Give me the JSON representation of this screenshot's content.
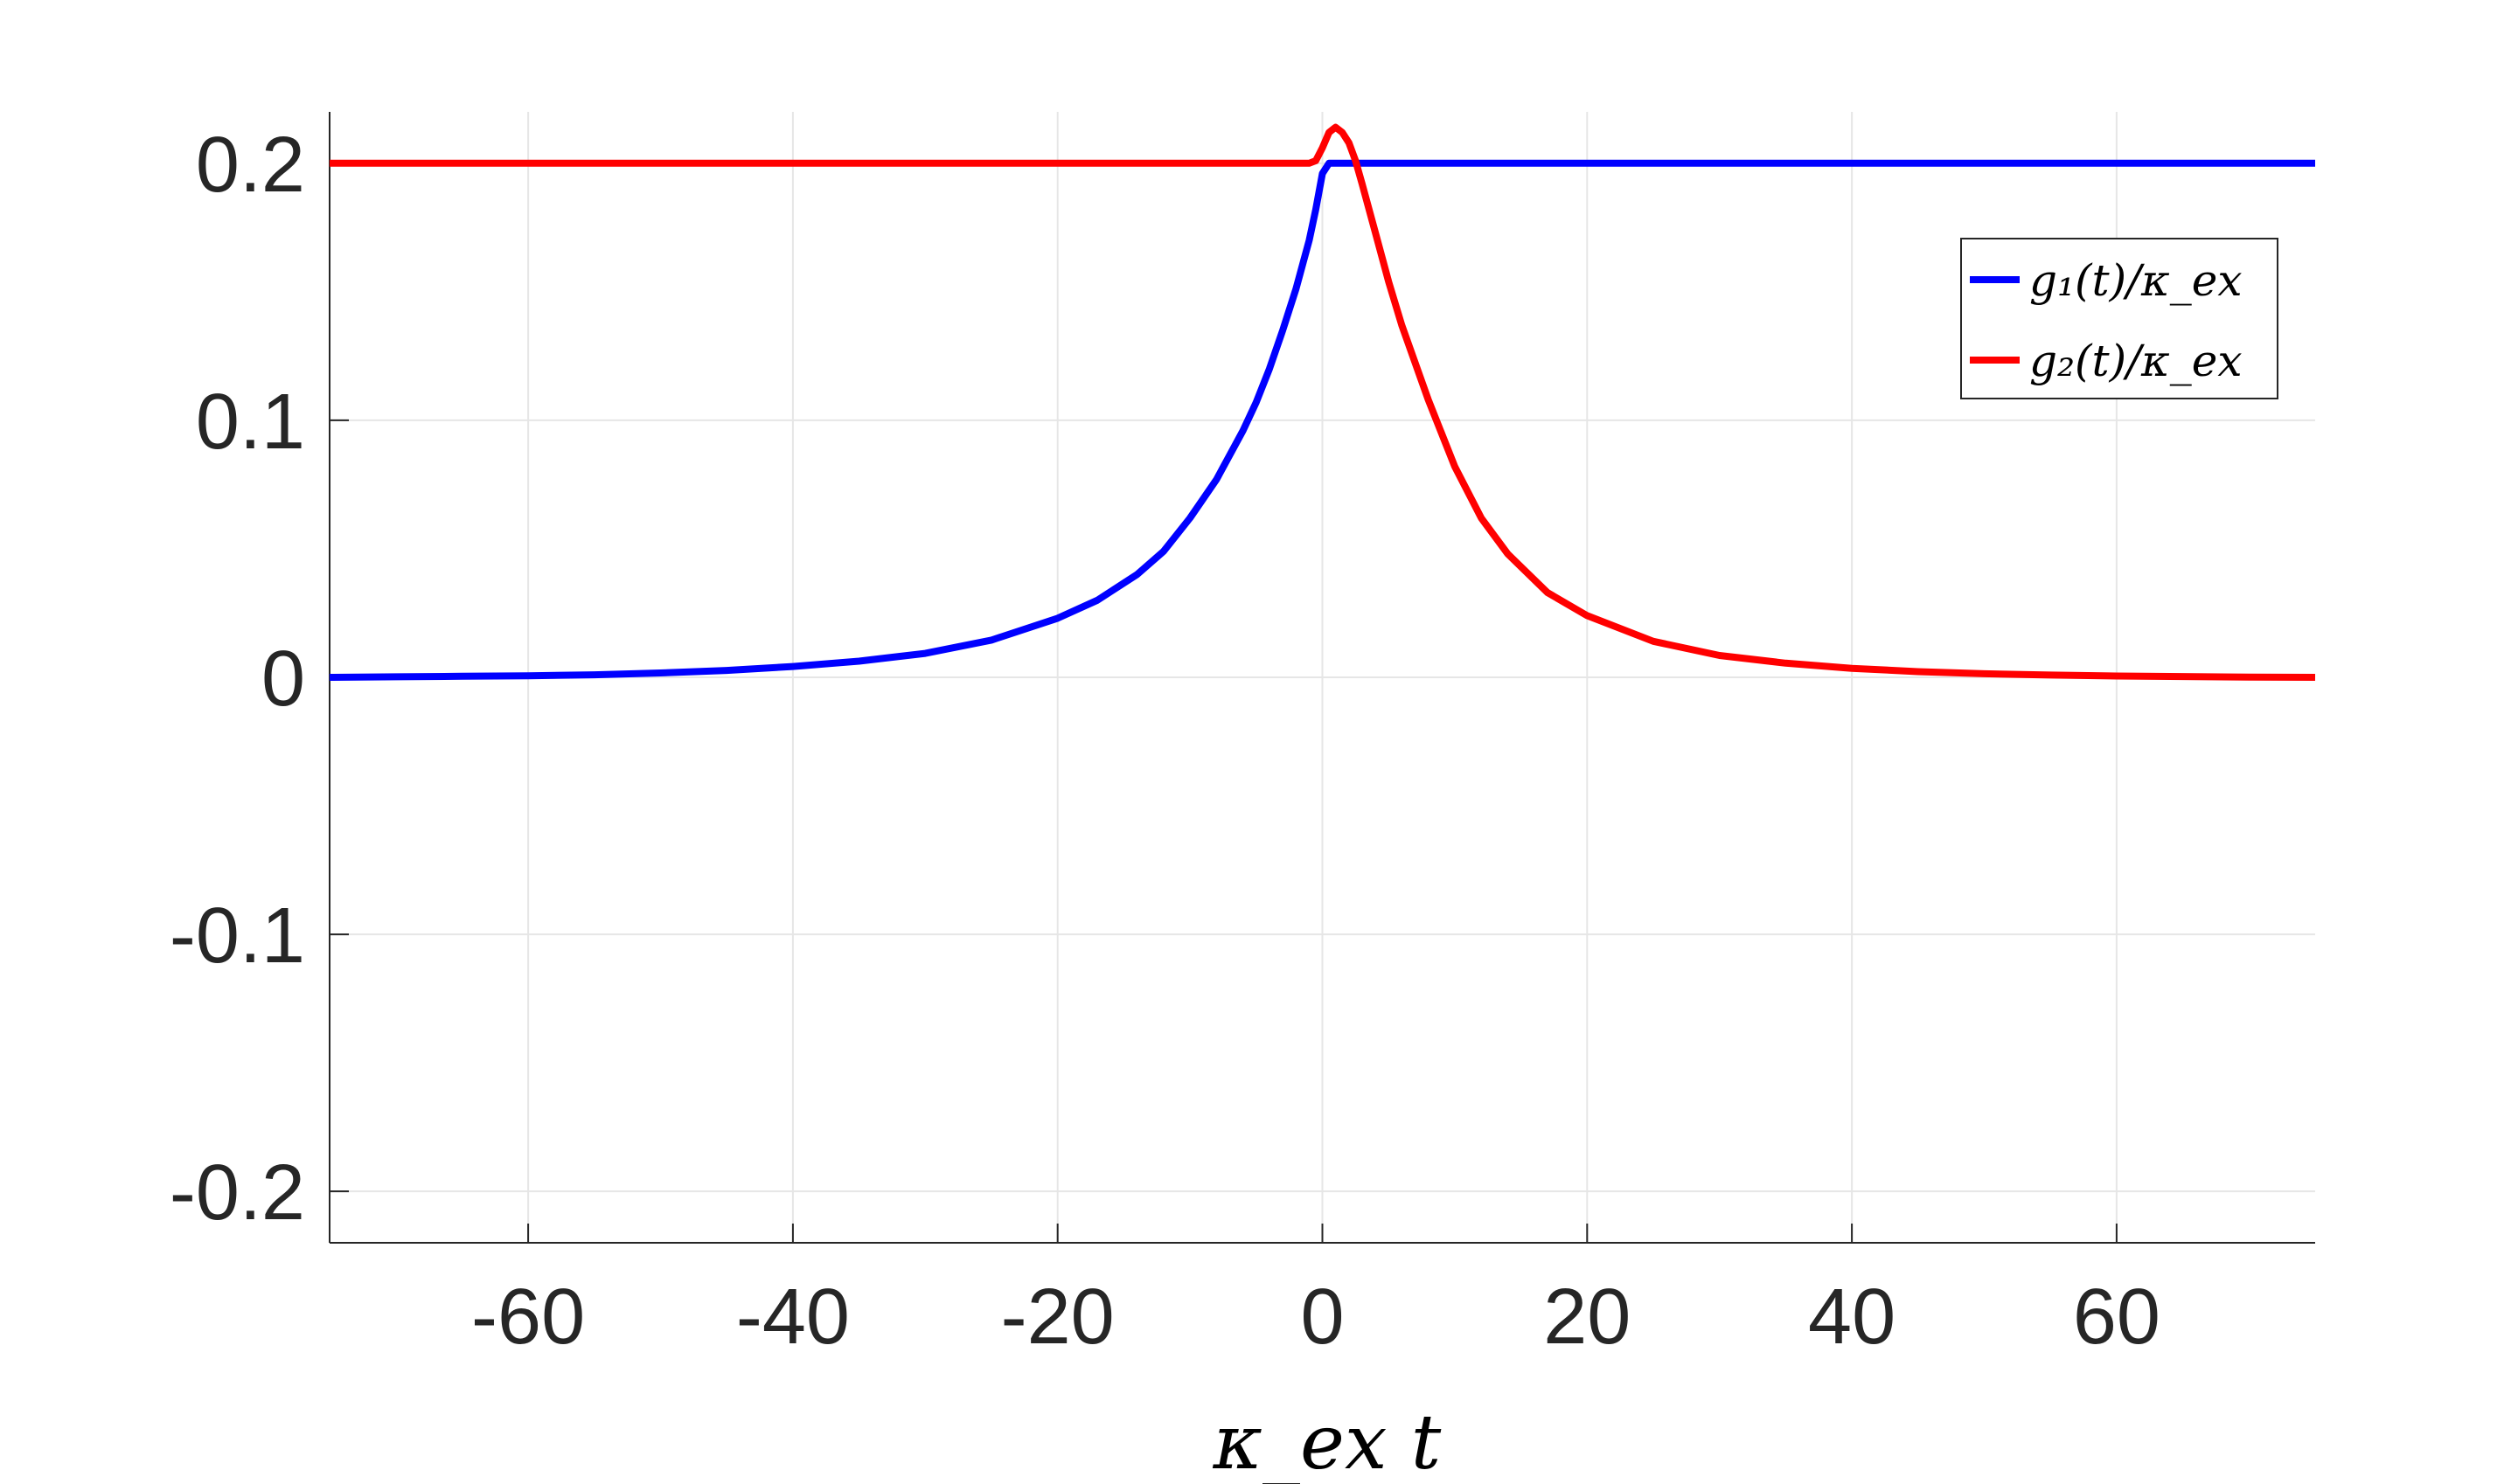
{
  "chart_data": {
    "type": "line",
    "title": "",
    "xlabel": "κ_ex t",
    "ylabel": "",
    "xlim": [
      -75,
      75
    ],
    "ylim": [
      -0.22,
      0.22
    ],
    "xticks": [
      -60,
      -40,
      -20,
      0,
      20,
      40,
      60
    ],
    "xtick_labels": [
      "-60",
      "-40",
      "-20",
      "0",
      "20",
      "40",
      "60"
    ],
    "yticks": [
      -0.2,
      -0.1,
      0,
      0.1,
      0.2
    ],
    "ytick_labels": [
      "-0.2",
      "-0.1",
      "0",
      "0.1",
      "0.2"
    ],
    "grid": true,
    "legend_position": "top-right",
    "x": [
      -75,
      -70,
      -65,
      -60,
      -55,
      -50,
      -45,
      -40,
      -35,
      -30,
      -25,
      -20,
      -17,
      -14,
      -12,
      -10,
      -8,
      -6,
      -5,
      -4,
      -3,
      -2,
      -1,
      -0.5,
      0,
      0.5,
      1,
      1.5,
      2,
      2.5,
      3,
      4,
      5,
      6,
      8,
      10,
      12,
      14,
      17,
      20,
      25,
      30,
      35,
      40,
      45,
      50,
      55,
      60,
      65,
      70,
      75
    ],
    "series": [
      {
        "name": "g₁(t)/κ_ex",
        "color": "#0000ff",
        "values": [
          0.0,
          0.0002,
          0.0004,
          0.0006,
          0.001,
          0.0017,
          0.0027,
          0.0042,
          0.0063,
          0.0093,
          0.0145,
          0.023,
          0.03,
          0.04,
          0.049,
          0.062,
          0.077,
          0.096,
          0.107,
          0.12,
          0.135,
          0.151,
          0.17,
          0.182,
          0.196,
          0.2,
          0.2,
          0.2,
          0.2,
          0.2,
          0.2,
          0.2,
          0.2,
          0.2,
          0.2,
          0.2,
          0.2,
          0.2,
          0.2,
          0.2,
          0.2,
          0.2,
          0.2,
          0.2,
          0.2,
          0.2,
          0.2,
          0.2,
          0.2,
          0.2,
          0.2
        ]
      },
      {
        "name": "g₂(t)/κ_ex",
        "color": "#ff0000",
        "values": [
          0.2,
          0.2,
          0.2,
          0.2,
          0.2,
          0.2,
          0.2,
          0.2,
          0.2,
          0.2,
          0.2,
          0.2,
          0.2,
          0.2,
          0.2,
          0.2,
          0.2,
          0.2,
          0.2,
          0.2,
          0.2,
          0.2,
          0.2,
          0.201,
          0.206,
          0.212,
          0.214,
          0.212,
          0.208,
          0.201,
          0.192,
          0.173,
          0.154,
          0.137,
          0.108,
          0.082,
          0.062,
          0.048,
          0.033,
          0.024,
          0.014,
          0.0085,
          0.0055,
          0.0035,
          0.0022,
          0.0014,
          0.0009,
          0.0005,
          0.0003,
          0.0001,
          0.0
        ]
      }
    ]
  }
}
